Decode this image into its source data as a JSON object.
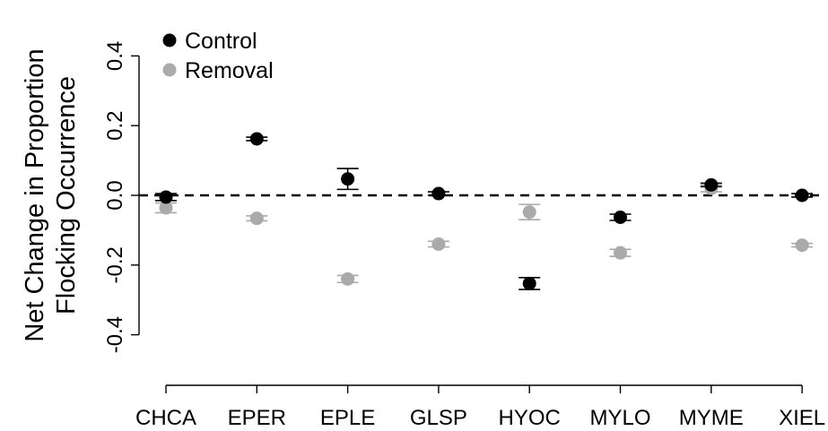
{
  "chart_data": {
    "type": "scatter",
    "title": "",
    "xlabel": "",
    "ylabel_lines": [
      "Net Change in Proportion",
      "Flocking Occurrence"
    ],
    "categories": [
      "CHCA",
      "EPER",
      "EPLE",
      "GLSP",
      "HYOC",
      "MYLO",
      "MYME",
      "XIEL"
    ],
    "y_ticks": [
      -0.4,
      -0.2,
      0.0,
      0.2,
      0.4
    ],
    "y_tick_labels": [
      "-0.4",
      "-0.2",
      "0.0",
      "0.2",
      "0.4"
    ],
    "ylim": [
      -0.55,
      0.55
    ],
    "reference_line": 0.0,
    "grid": false,
    "legend_position": "top-left",
    "series": [
      {
        "name": "Control",
        "color": "#000000",
        "values": [
          -0.005,
          0.162,
          0.047,
          0.005,
          -0.253,
          -0.063,
          0.03,
          0.0
        ],
        "error_low": [
          -0.015,
          0.157,
          0.017,
          0.0,
          -0.27,
          -0.072,
          0.025,
          -0.005
        ],
        "error_high": [
          0.005,
          0.167,
          0.077,
          0.01,
          -0.236,
          -0.054,
          0.035,
          0.005
        ]
      },
      {
        "name": "Removal",
        "color": "#aaaaaa",
        "values": [
          -0.036,
          -0.066,
          -0.24,
          -0.14,
          -0.048,
          -0.165,
          0.02,
          -0.143
        ],
        "error_low": [
          -0.05,
          -0.073,
          -0.25,
          -0.148,
          -0.07,
          -0.175,
          0.01,
          -0.148
        ],
        "error_high": [
          -0.022,
          -0.059,
          -0.23,
          -0.132,
          -0.026,
          -0.155,
          0.03,
          -0.138
        ]
      }
    ]
  }
}
